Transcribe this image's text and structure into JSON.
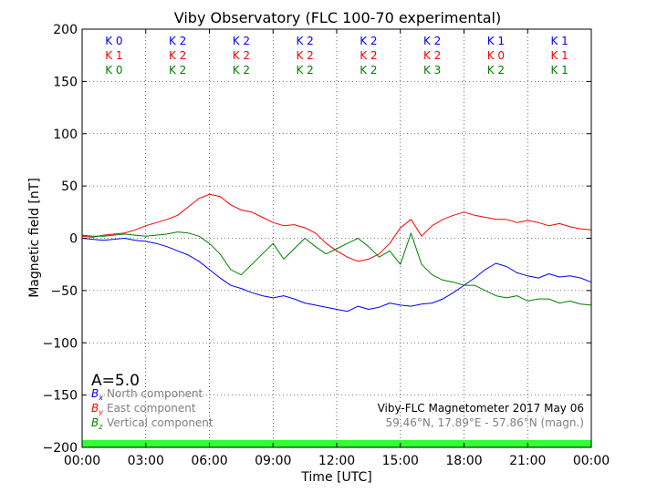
{
  "chart_data": {
    "type": "line",
    "title": "Viby Observatory (FLC 100-70 experimental)",
    "xlabel": "Time [UTC]",
    "ylabel": "Magnetic field [nT]",
    "xlim": [
      0,
      24
    ],
    "ylim": [
      -200,
      200
    ],
    "x_ticks": [
      0,
      3,
      6,
      9,
      12,
      15,
      18,
      21,
      24
    ],
    "x_tick_labels": [
      "00:00",
      "03:00",
      "06:00",
      "09:00",
      "12:00",
      "15:00",
      "18:00",
      "21:00",
      "00:00"
    ],
    "y_ticks": [
      -200,
      -150,
      -100,
      -50,
      0,
      50,
      100,
      150,
      200
    ],
    "y_tick_labels": [
      "−200",
      "−150",
      "−100",
      "−50",
      "0",
      "50",
      "100",
      "150",
      "200"
    ],
    "grid": true,
    "k_index_rows": [
      {
        "color": "#0000ff",
        "labels": [
          "K 0",
          "K 2",
          "K 2",
          "K 2",
          "K 2",
          "K 2",
          "K 1",
          "K 1"
        ]
      },
      {
        "color": "#ff0000",
        "labels": [
          "K 1",
          "K 2",
          "K 2",
          "K 2",
          "K 2",
          "K 2",
          "K 0",
          "K 1"
        ]
      },
      {
        "color": "#008000",
        "labels": [
          "K 0",
          "K 2",
          "K 2",
          "K 2",
          "K 2",
          "K 3",
          "K 2",
          "K 1"
        ]
      }
    ],
    "a_index": "A=5.0",
    "legend": [
      {
        "symbol": "B",
        "sub": "x",
        "text": "North component",
        "color": "#0000ff"
      },
      {
        "symbol": "B",
        "sub": "y",
        "text": "East component",
        "color": "#ff0000"
      },
      {
        "symbol": "B",
        "sub": "z",
        "text": "Vertical component",
        "color": "#008000"
      }
    ],
    "legend_position": "bottom-left",
    "info_title": "Viby-FLC Magnetometer 2017 May 06",
    "info_coords": "59.46°N, 17.89°E - 57.86°N (magn.)",
    "info_position": "bottom-right",
    "band": {
      "y0": -200,
      "y1": -193,
      "color": "#33ff33"
    },
    "series": [
      {
        "key": "bx",
        "color": "#0000ff",
        "x": [
          0,
          0.5,
          1,
          1.5,
          2,
          2.5,
          3,
          3.5,
          4,
          4.5,
          5,
          5.5,
          6,
          6.5,
          7,
          7.5,
          8,
          8.5,
          9,
          9.5,
          10,
          10.5,
          11,
          11.5,
          12,
          12.5,
          13,
          13.5,
          14,
          14.5,
          15,
          15.5,
          16,
          16.5,
          17,
          17.5,
          18,
          18.5,
          19,
          19.5,
          20,
          20.5,
          21,
          21.5,
          22,
          22.5,
          23,
          23.5,
          24
        ],
        "y": [
          0,
          -1,
          -2,
          -1,
          0,
          -2,
          -3,
          -5,
          -8,
          -12,
          -16,
          -22,
          -30,
          -38,
          -45,
          -48,
          -52,
          -55,
          -57,
          -55,
          -58,
          -62,
          -64,
          -66,
          -68,
          -70,
          -65,
          -68,
          -66,
          -62,
          -64,
          -65,
          -63,
          -62,
          -58,
          -52,
          -45,
          -38,
          -30,
          -24,
          -27,
          -33,
          -36,
          -38,
          -34,
          -37,
          -36,
          -38,
          -42
        ]
      },
      {
        "key": "by",
        "color": "#ff0000",
        "x": [
          0,
          0.5,
          1,
          1.5,
          2,
          2.5,
          3,
          3.5,
          4,
          4.5,
          5,
          5.5,
          6,
          6.5,
          7,
          7.5,
          8,
          8.5,
          9,
          9.5,
          10,
          10.5,
          11,
          11.5,
          12,
          12.5,
          13,
          13.5,
          14,
          14.5,
          15,
          15.5,
          16,
          16.5,
          17,
          17.5,
          18,
          18.5,
          19,
          19.5,
          20,
          20.5,
          21,
          21.5,
          22,
          22.5,
          23,
          23.5,
          24
        ],
        "y": [
          2,
          1,
          3,
          4,
          5,
          8,
          12,
          15,
          18,
          22,
          30,
          38,
          42,
          40,
          32,
          27,
          25,
          20,
          15,
          12,
          13,
          10,
          5,
          -5,
          -12,
          -18,
          -22,
          -20,
          -15,
          -5,
          10,
          18,
          2,
          12,
          18,
          22,
          25,
          22,
          20,
          18,
          18,
          15,
          17,
          15,
          12,
          14,
          11,
          9,
          8
        ]
      },
      {
        "key": "bz",
        "color": "#008000",
        "x": [
          0,
          0.5,
          1,
          1.5,
          2,
          2.5,
          3,
          3.5,
          4,
          4.5,
          5,
          5.5,
          6,
          6.5,
          7,
          7.5,
          8,
          8.5,
          9,
          9.5,
          10,
          10.5,
          11,
          11.5,
          12,
          12.5,
          13,
          13.5,
          14,
          14.5,
          15,
          15.5,
          16,
          16.5,
          17,
          17.5,
          18,
          18.5,
          19,
          19.5,
          20,
          20.5,
          21,
          21.5,
          22,
          22.5,
          23,
          23.5,
          24
        ],
        "y": [
          3,
          2,
          2,
          3,
          4,
          3,
          2,
          3,
          4,
          6,
          5,
          2,
          -5,
          -15,
          -30,
          -35,
          -25,
          -15,
          -5,
          -20,
          -10,
          0,
          -8,
          -15,
          -10,
          -5,
          0,
          -8,
          -18,
          -12,
          -25,
          5,
          -25,
          -35,
          -40,
          -42,
          -45,
          -45,
          -50,
          -55,
          -57,
          -55,
          -60,
          -58,
          -58,
          -62,
          -60,
          -63,
          -64
        ]
      }
    ]
  }
}
